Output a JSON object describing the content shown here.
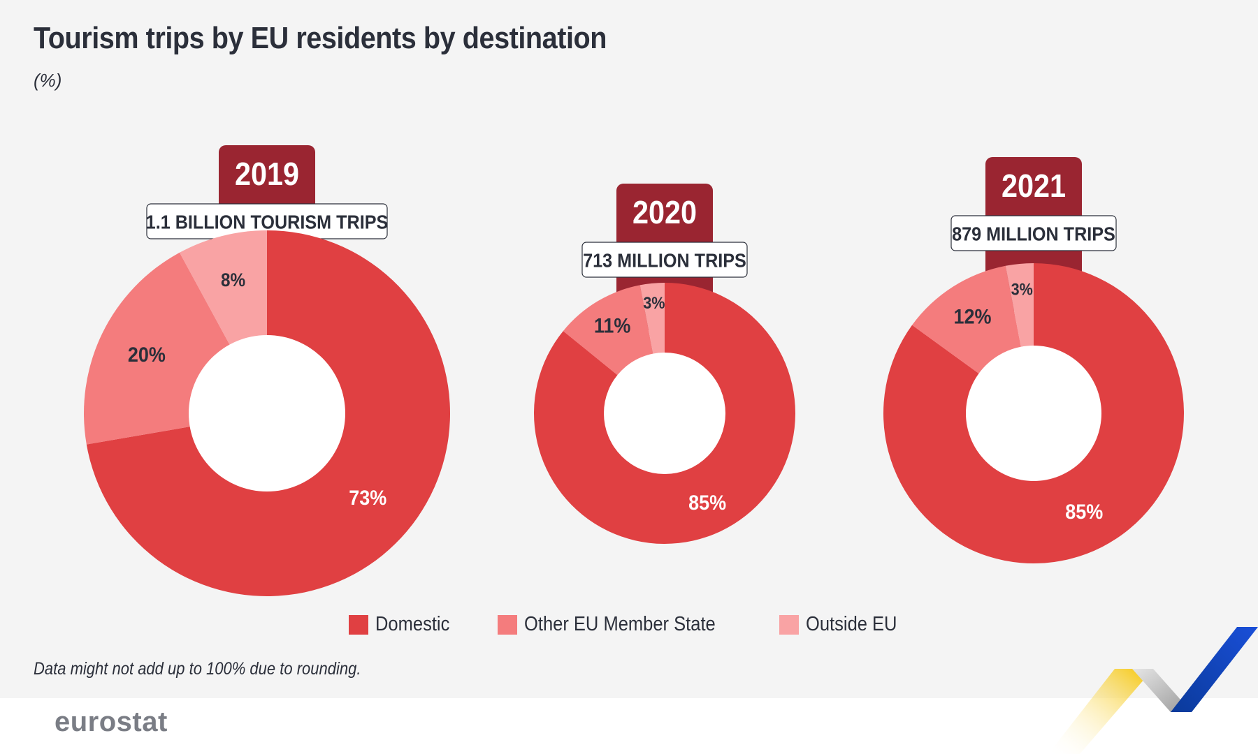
{
  "title": "Tourism trips by EU residents by destination",
  "subtitle": "(%)",
  "footnote": "Data might not add up to 100% due to rounding.",
  "brand": "eurostat",
  "colors": {
    "domestic": "#e04042",
    "other_eu": "#f47c7d",
    "outside_eu": "#f9a3a4",
    "year_tab": "#9a2531",
    "hole": "#ffffff",
    "label_dark": "#2b2f3a",
    "label_light": "#ffffff"
  },
  "legend": [
    {
      "label": "Domestic",
      "color": "#e04042"
    },
    {
      "label": "Other EU Member State",
      "color": "#f47c7d"
    },
    {
      "label": "Outside EU",
      "color": "#f9a3a4"
    }
  ],
  "chart_data": {
    "type": "pie",
    "categories": [
      "Domestic",
      "Other EU Member State",
      "Outside EU"
    ],
    "charts": [
      {
        "year": "2019",
        "total": "1.1 BILLION TOURISM TRIPS",
        "values": [
          73,
          20,
          8
        ],
        "labels": [
          "73%",
          "20%",
          "8%"
        ]
      },
      {
        "year": "2020",
        "total": "713 MILLION TRIPS",
        "values": [
          85,
          11,
          3
        ],
        "labels": [
          "85%",
          "11%",
          "3%"
        ]
      },
      {
        "year": "2021",
        "total": "879 MILLION TRIPS",
        "values": [
          85,
          12,
          3
        ],
        "labels": [
          "85%",
          "12%",
          "3%"
        ]
      }
    ]
  }
}
